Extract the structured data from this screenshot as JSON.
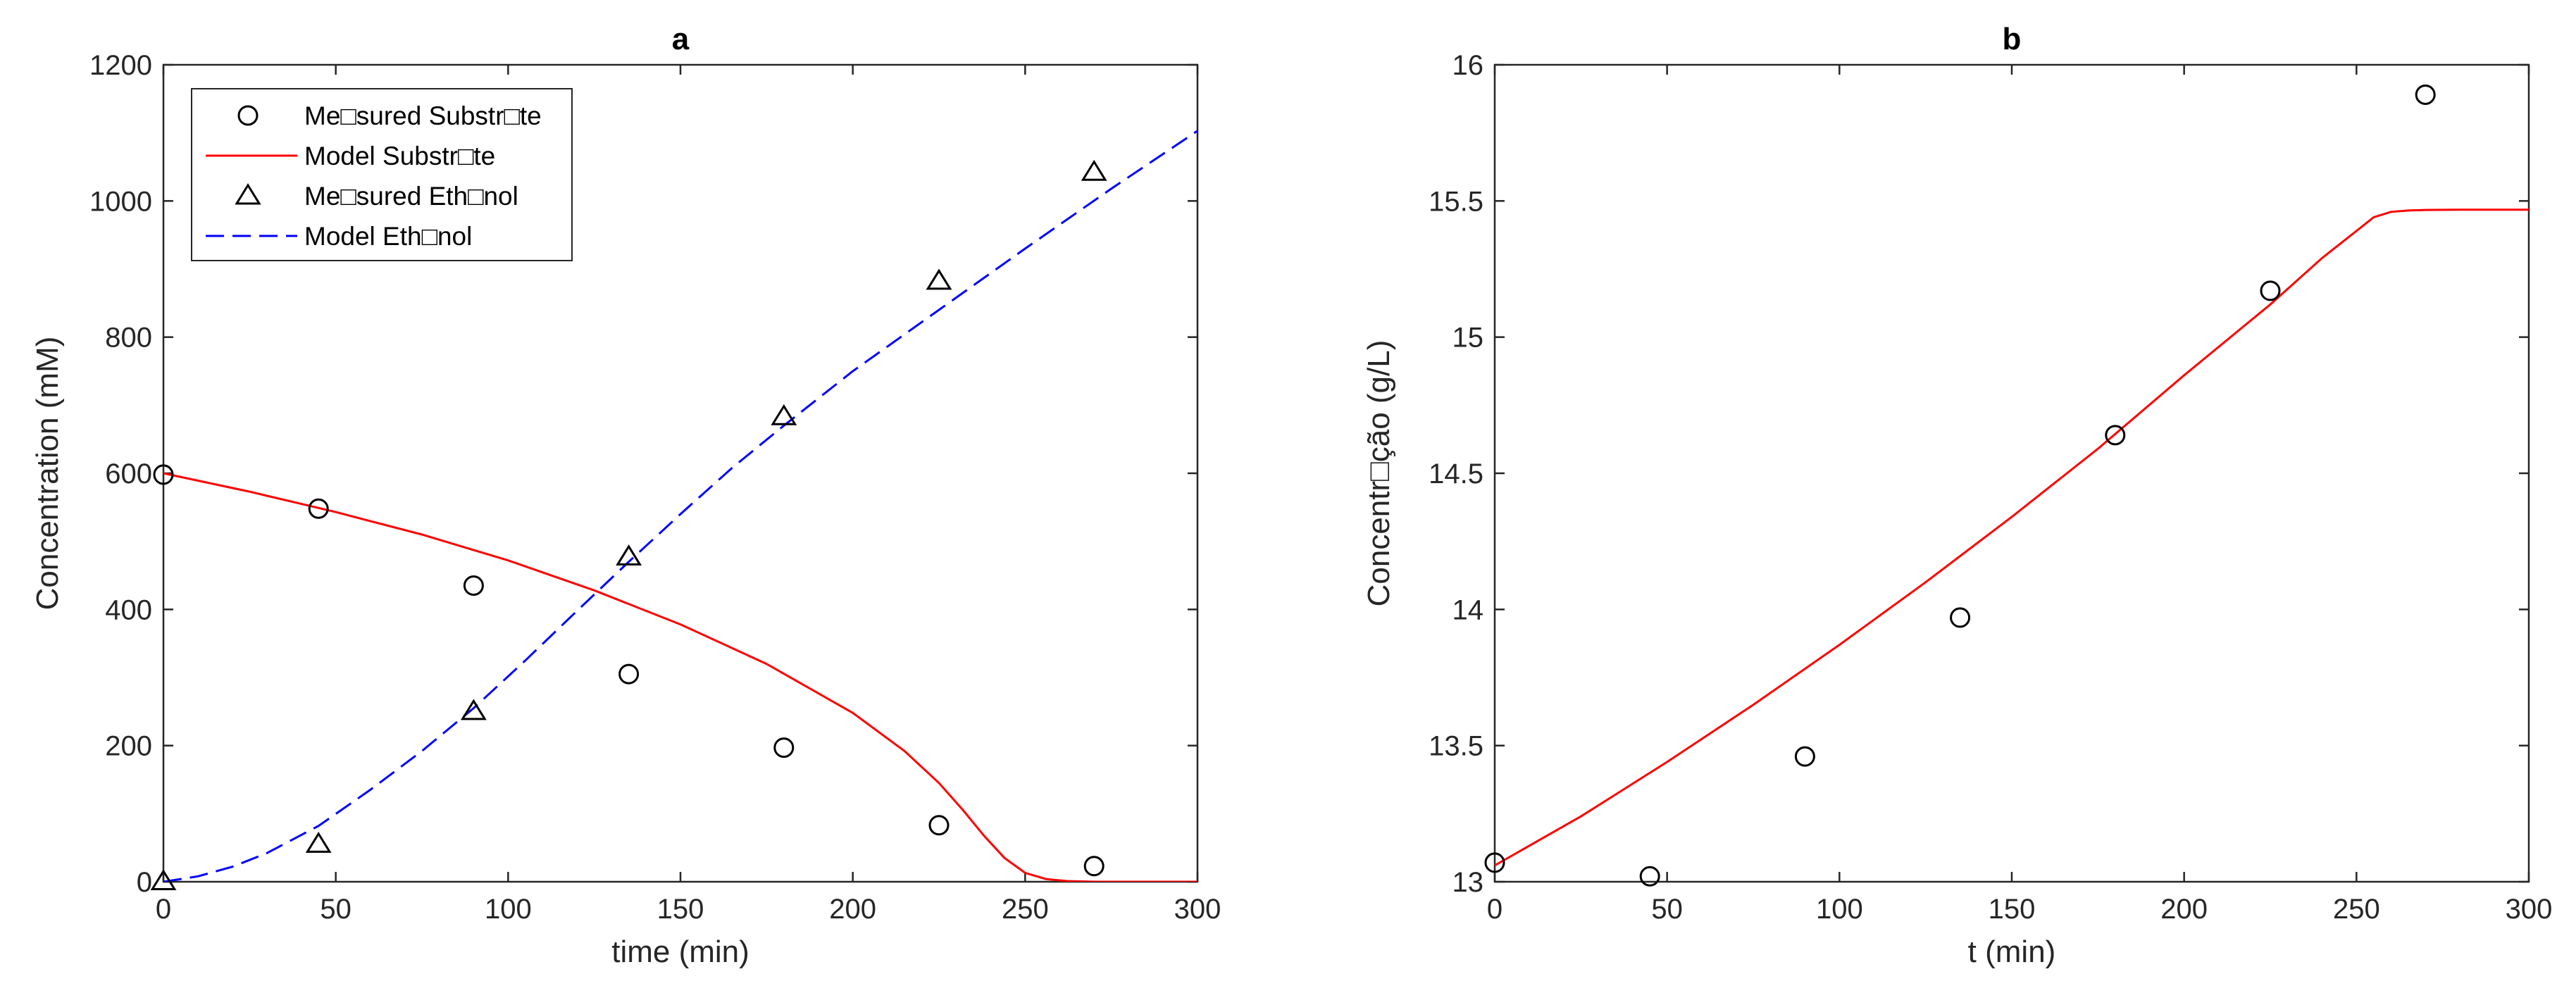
{
  "chart_data": [
    {
      "type": "line",
      "title": "a",
      "xlabel": "time (min)",
      "ylabel": "Concentration (mM)",
      "xlim": [
        0,
        300
      ],
      "ylim": [
        0,
        1200
      ],
      "xticks": [
        0,
        50,
        100,
        150,
        200,
        250,
        300
      ],
      "yticks": [
        0,
        200,
        400,
        600,
        800,
        1000,
        1200
      ],
      "grid": false,
      "legend_position": "top-left",
      "series": [
        {
          "name": "Me□sured Substr□te",
          "kind": "scatter",
          "marker": "circle",
          "color": "#000000",
          "x": [
            0,
            45,
            90,
            135,
            180,
            225,
            270
          ],
          "y": [
            598,
            548,
            435,
            305,
            197,
            83,
            23
          ]
        },
        {
          "name": "Model Substr□te",
          "kind": "line",
          "style": "solid",
          "color": "#ff0000",
          "x": [
            0,
            25,
            50,
            75,
            100,
            125,
            150,
            175,
            200,
            215,
            225,
            232,
            238,
            244,
            250,
            256,
            262,
            270,
            285,
            300
          ],
          "y": [
            600,
            573,
            543,
            510,
            472,
            428,
            378,
            320,
            248,
            192,
            145,
            105,
            68,
            35,
            13,
            4,
            1,
            0,
            0,
            0
          ]
        },
        {
          "name": "Me□sured Eth□nol",
          "kind": "scatter",
          "marker": "triangle",
          "color": "#000000",
          "x": [
            0,
            45,
            90,
            135,
            180,
            225,
            270
          ],
          "y": [
            0,
            55,
            250,
            477,
            683,
            882,
            1042
          ]
        },
        {
          "name": "Model Eth□nol",
          "kind": "line",
          "style": "dashed",
          "color": "#0000ff",
          "x": [
            0,
            10,
            20,
            30,
            45,
            60,
            75,
            90,
            105,
            120,
            135,
            150,
            165,
            180,
            200,
            225,
            250,
            275,
            300
          ],
          "y": [
            0,
            8,
            22,
            42,
            82,
            135,
            192,
            255,
            325,
            398,
            470,
            540,
            608,
            670,
            750,
            840,
            930,
            1018,
            1103
          ]
        }
      ]
    },
    {
      "type": "line",
      "title": "b",
      "xlabel": "t (min)",
      "ylabel": "Concentr□ção (g/L)",
      "xlim": [
        0,
        300
      ],
      "ylim": [
        13,
        16
      ],
      "xticks": [
        0,
        50,
        100,
        150,
        200,
        250,
        300
      ],
      "yticks": [
        13,
        13.5,
        14,
        14.5,
        15,
        15.5,
        16
      ],
      "grid": false,
      "series": [
        {
          "kind": "scatter",
          "marker": "circle",
          "color": "#000000",
          "x": [
            0,
            45,
            90,
            135,
            180,
            225,
            270
          ],
          "y": [
            13.07,
            13.02,
            13.46,
            13.97,
            14.64,
            15.17,
            15.89
          ]
        },
        {
          "kind": "line",
          "style": "solid",
          "color": "#ff0000",
          "x": [
            0,
            25,
            50,
            75,
            100,
            125,
            150,
            175,
            200,
            225,
            240,
            250,
            255,
            260,
            265,
            270,
            280,
            300
          ],
          "y": [
            13.06,
            13.24,
            13.44,
            13.65,
            13.87,
            14.1,
            14.34,
            14.59,
            14.86,
            15.12,
            15.29,
            15.39,
            15.44,
            15.46,
            15.465,
            15.467,
            15.468,
            15.468
          ]
        }
      ]
    }
  ]
}
